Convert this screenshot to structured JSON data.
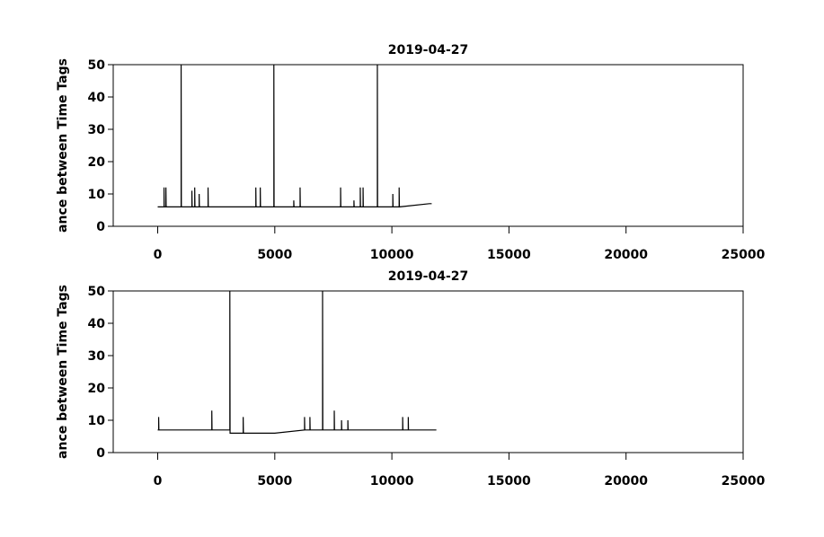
{
  "chart_data": [
    {
      "type": "line",
      "title": "2019-04-27",
      "y_label": "ance between Time Tags",
      "color": "#000000",
      "x": [
        0,
        270,
        270,
        280,
        350,
        350,
        360,
        1000,
        1000,
        1010,
        1460,
        1460,
        1470,
        1580,
        1580,
        1590,
        1770,
        1770,
        1780,
        2150,
        2150,
        2160,
        4190,
        4190,
        4200,
        4380,
        4380,
        4390,
        4960,
        4960,
        4970,
        5810,
        5810,
        5820,
        6080,
        6080,
        6090,
        7810,
        7810,
        7820,
        8380,
        8380,
        8390,
        8650,
        8650,
        8660,
        8770,
        8770,
        8780,
        9380,
        9380,
        9390,
        10040,
        10040,
        10050,
        10310,
        10310,
        10320,
        11600,
        11700
      ],
      "values": [
        6,
        6,
        12,
        6,
        6,
        12,
        6,
        6,
        50,
        6,
        6,
        11,
        6,
        6,
        12,
        6,
        6,
        10,
        6,
        6,
        12,
        6,
        6,
        12,
        6,
        6,
        12,
        6,
        6,
        50,
        6,
        6,
        8,
        6,
        6,
        12,
        6,
        6,
        12,
        6,
        6,
        8,
        6,
        6,
        12,
        6,
        6,
        12,
        6,
        6,
        50,
        6,
        6,
        10,
        6,
        6,
        12,
        6,
        7,
        7
      ],
      "xlim": [
        -1900,
        25000
      ],
      "xticks": [
        0,
        5000,
        10000,
        15000,
        20000,
        25000
      ],
      "ylim": [
        0,
        50
      ],
      "yticks": [
        0,
        10,
        20,
        30,
        40,
        50
      ]
    },
    {
      "type": "line",
      "title": "2019-04-27",
      "y_label": "ance between Time Tags",
      "color": "#000000",
      "x": [
        0,
        40,
        40,
        50,
        2310,
        2310,
        2320,
        3080,
        3080,
        3090,
        3650,
        3650,
        3660,
        5000,
        6270,
        6270,
        6280,
        6500,
        6500,
        6510,
        7040,
        7040,
        7050,
        7540,
        7540,
        7550,
        7850,
        7850,
        7860,
        8120,
        8120,
        8130,
        10460,
        10460,
        10470,
        10700,
        10700,
        10710,
        11900
      ],
      "values": [
        7,
        7,
        11,
        7,
        7,
        13,
        7,
        7,
        50,
        6,
        6,
        11,
        6,
        6,
        7,
        11,
        7,
        7,
        11,
        7,
        7,
        50,
        7,
        7,
        13,
        7,
        7,
        10,
        7,
        7,
        10,
        7,
        7,
        11,
        7,
        7,
        11,
        7,
        7
      ],
      "xlim": [
        -1900,
        25000
      ],
      "xticks": [
        0,
        5000,
        10000,
        15000,
        20000,
        25000
      ],
      "ylim": [
        0,
        50
      ],
      "yticks": [
        0,
        10,
        20,
        30,
        40,
        50
      ]
    }
  ]
}
